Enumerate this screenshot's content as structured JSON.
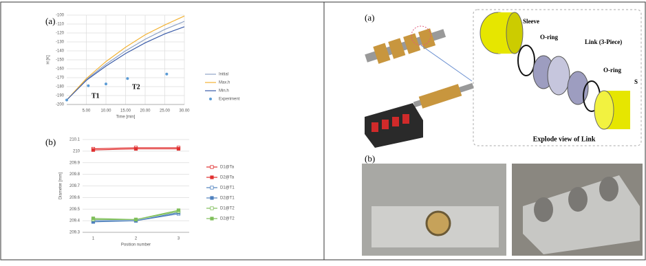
{
  "chart_data": [
    {
      "type": "line",
      "annotations": [
        "(a)",
        "T1",
        "T2"
      ],
      "xlabel": "Time [min]",
      "ylabel": "H [K]",
      "xlim": [
        0,
        30
      ],
      "ylim": [
        -200,
        -100
      ],
      "xticks": [
        {
          "value": 5,
          "label": "5.00"
        },
        {
          "value": 10,
          "label": "10.00"
        },
        {
          "value": 15,
          "label": "15.00"
        },
        {
          "value": 20,
          "label": "20.00"
        },
        {
          "value": 25,
          "label": "25.00"
        },
        {
          "value": 30,
          "label": "30.00"
        }
      ],
      "yticks": [
        -100,
        -110,
        -120,
        -130,
        -140,
        -150,
        -160,
        -170,
        -180,
        -190,
        -200
      ],
      "grid": true,
      "legend": "right",
      "series": [
        {
          "name": "Initial",
          "color": "#8ea2c6",
          "marker": "none",
          "x": [
            0,
            5,
            10,
            15,
            20,
            25,
            30
          ],
          "values": [
            -195,
            -172,
            -155,
            -140,
            -127,
            -116,
            -107
          ]
        },
        {
          "name": "Max.h",
          "color": "#f2b233",
          "marker": "none",
          "x": [
            0,
            5,
            10,
            15,
            20,
            25,
            30
          ],
          "values": [
            -195,
            -171,
            -152,
            -136,
            -122,
            -111,
            -101
          ]
        },
        {
          "name": "Min.h",
          "color": "#3a5ba8",
          "marker": "none",
          "x": [
            0,
            5,
            10,
            15,
            20,
            25,
            30
          ],
          "values": [
            -195,
            -173,
            -157,
            -143,
            -131,
            -121,
            -113
          ]
        },
        {
          "name": "Experiment",
          "color": "#5b9bd5",
          "marker": "dot",
          "line": false,
          "x": [
            0,
            5.5,
            10,
            15.5,
            25.5
          ],
          "values": [
            -195,
            -179,
            -177,
            -171,
            -166
          ]
        }
      ]
    },
    {
      "type": "line",
      "annotations": [
        "(b)"
      ],
      "xlabel": "Position number",
      "ylabel": "Diameter [mm]",
      "xlim": [
        0.75,
        3.25
      ],
      "ylim": [
        209.3,
        210.1
      ],
      "xticks": [
        1,
        2,
        3
      ],
      "yticks": [
        209.3,
        209.4,
        209.5,
        209.6,
        209.7,
        209.8,
        209.9,
        210,
        210.1
      ],
      "grid": true,
      "legend": "right",
      "series": [
        {
          "name": "D1@Ta",
          "color": "#e03030",
          "marker": "square-open",
          "x": [
            1,
            2,
            3
          ],
          "values": [
            210.02,
            210.03,
            210.03
          ]
        },
        {
          "name": "D2@Ta",
          "color": "#e03030",
          "marker": "square",
          "x": [
            1,
            2,
            3
          ],
          "values": [
            210.01,
            210.02,
            210.02
          ]
        },
        {
          "name": "D1@T1",
          "color": "#4f81bd",
          "marker": "square-open",
          "x": [
            1,
            2,
            3
          ],
          "values": [
            209.4,
            209.4,
            209.46
          ]
        },
        {
          "name": "D2@T1",
          "color": "#4f81bd",
          "marker": "square",
          "x": [
            1,
            2,
            3
          ],
          "values": [
            209.39,
            209.4,
            209.47
          ]
        },
        {
          "name": "D1@T2",
          "color": "#7fbf5a",
          "marker": "square-open",
          "x": [
            1,
            2,
            3
          ],
          "values": [
            209.41,
            209.41,
            209.48
          ]
        },
        {
          "name": "D2@T2",
          "color": "#7fbf5a",
          "marker": "square",
          "x": [
            1,
            2,
            3
          ],
          "values": [
            209.42,
            209.41,
            209.49
          ]
        }
      ]
    }
  ],
  "figure_right": {
    "panel_a": "(a)",
    "panel_b": "(b)",
    "labels": [
      "Sleeve",
      "O-ring",
      "Link (3-Piece)",
      "O-ring",
      "S"
    ],
    "caption": "Explode view of Link"
  }
}
